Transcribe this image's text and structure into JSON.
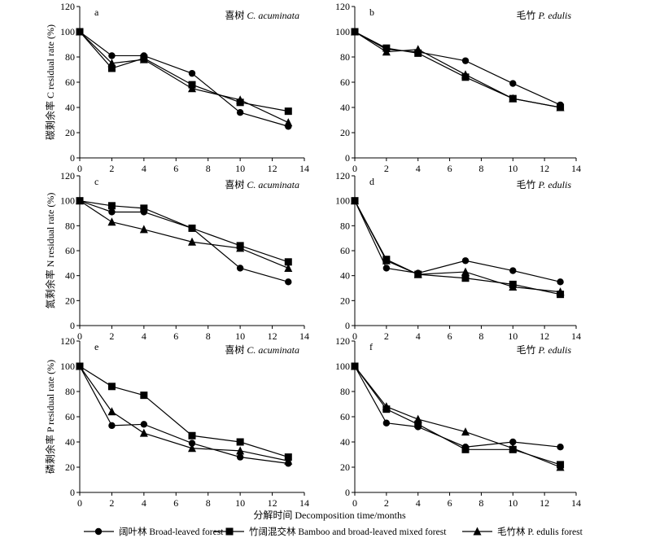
{
  "figure": {
    "xlabel": "分解时间 Decomposition time/months",
    "legend": [
      {
        "marker": "circle",
        "label": "阔叶林 Broad-leaved forest"
      },
      {
        "marker": "square",
        "label": "竹阔混交林 Bamboo and broad-leaved mixed forest"
      },
      {
        "marker": "triangle",
        "label": "毛竹林 P. edulis forest"
      }
    ]
  },
  "chart_data": [
    {
      "type": "line",
      "panel": "a",
      "species": "喜树 C. acuminata",
      "ylabel": "碳剩余率 C residual rate (%)",
      "xlim": [
        0,
        14
      ],
      "ylim": [
        0,
        120
      ],
      "xticks": [
        0,
        2,
        4,
        6,
        8,
        10,
        12,
        14
      ],
      "yticks": [
        0,
        20,
        40,
        60,
        80,
        100,
        120
      ],
      "series": [
        {
          "name": "阔叶林 Broad-leaved forest",
          "marker": "circle",
          "x": [
            0,
            2,
            4,
            7,
            10,
            13
          ],
          "y": [
            100,
            81,
            81,
            67,
            36,
            25
          ]
        },
        {
          "name": "竹阔混交林 Bamboo and broad-leaved mixed forest",
          "marker": "square",
          "x": [
            0,
            2,
            4,
            7,
            10,
            13
          ],
          "y": [
            100,
            71,
            79,
            58,
            44,
            37
          ]
        },
        {
          "name": "毛竹林 P. edulis forest",
          "marker": "triangle",
          "x": [
            0,
            2,
            4,
            7,
            10,
            13
          ],
          "y": [
            100,
            75,
            78,
            55,
            46,
            28
          ]
        }
      ]
    },
    {
      "type": "line",
      "panel": "b",
      "species": "毛竹 P. edulis",
      "ylabel": "",
      "xlim": [
        0,
        14
      ],
      "ylim": [
        0,
        120
      ],
      "xticks": [
        0,
        2,
        4,
        6,
        8,
        10,
        12,
        14
      ],
      "yticks": [
        0,
        20,
        40,
        60,
        80,
        100,
        120
      ],
      "series": [
        {
          "name": "阔叶林 Broad-leaved forest",
          "marker": "circle",
          "x": [
            0,
            2,
            4,
            7,
            10,
            13
          ],
          "y": [
            100,
            86,
            84,
            77,
            59,
            42
          ]
        },
        {
          "name": "竹阔混交林 Bamboo and broad-leaved mixed forest",
          "marker": "square",
          "x": [
            0,
            2,
            4,
            7,
            10,
            13
          ],
          "y": [
            100,
            87,
            83,
            64,
            47,
            40
          ]
        },
        {
          "name": "毛竹林 P. edulis forest",
          "marker": "triangle",
          "x": [
            0,
            2,
            4,
            7,
            10,
            13
          ],
          "y": [
            100,
            84,
            86,
            66,
            47,
            40
          ]
        }
      ]
    },
    {
      "type": "line",
      "panel": "c",
      "species": "喜树 C. acuminata",
      "ylabel": "氮剩余率 N residual rate (%)",
      "xlim": [
        0,
        14
      ],
      "ylim": [
        0,
        120
      ],
      "xticks": [
        0,
        2,
        4,
        6,
        8,
        10,
        12,
        14
      ],
      "yticks": [
        0,
        20,
        40,
        60,
        80,
        100,
        120
      ],
      "series": [
        {
          "name": "阔叶林 Broad-leaved forest",
          "marker": "circle",
          "x": [
            0,
            2,
            4,
            7,
            10,
            13
          ],
          "y": [
            100,
            91,
            91,
            78,
            46,
            35
          ]
        },
        {
          "name": "竹阔混交林 Bamboo and broad-leaved mixed forest",
          "marker": "square",
          "x": [
            0,
            2,
            4,
            7,
            10,
            13
          ],
          "y": [
            100,
            96,
            94,
            78,
            64,
            51
          ]
        },
        {
          "name": "毛竹林 P. edulis forest",
          "marker": "triangle",
          "x": [
            0,
            2,
            4,
            7,
            10,
            13
          ],
          "y": [
            100,
            83,
            77,
            67,
            62,
            46
          ]
        }
      ]
    },
    {
      "type": "line",
      "panel": "d",
      "species": "毛竹 P. edulis",
      "ylabel": "",
      "xlim": [
        0,
        14
      ],
      "ylim": [
        0,
        120
      ],
      "xticks": [
        0,
        2,
        4,
        6,
        8,
        10,
        12,
        14
      ],
      "yticks": [
        0,
        20,
        40,
        60,
        80,
        100,
        120
      ],
      "series": [
        {
          "name": "阔叶林 Broad-leaved forest",
          "marker": "circle",
          "x": [
            0,
            2,
            4,
            7,
            10,
            13
          ],
          "y": [
            100,
            46,
            42,
            52,
            44,
            35
          ]
        },
        {
          "name": "竹阔混交林 Bamboo and broad-leaved mixed forest",
          "marker": "square",
          "x": [
            0,
            2,
            4,
            7,
            10,
            13
          ],
          "y": [
            100,
            53,
            41,
            38,
            33,
            25
          ]
        },
        {
          "name": "毛竹林 P. edulis forest",
          "marker": "triangle",
          "x": [
            0,
            2,
            4,
            7,
            10,
            13
          ],
          "y": [
            100,
            52,
            41,
            43,
            31,
            27
          ]
        }
      ]
    },
    {
      "type": "line",
      "panel": "e",
      "species": "喜树 C. acuminata",
      "ylabel": "磷剩余率 P residual rate (%)",
      "xlim": [
        0,
        14
      ],
      "ylim": [
        0,
        120
      ],
      "xticks": [
        0,
        2,
        4,
        6,
        8,
        10,
        12,
        14
      ],
      "yticks": [
        0,
        20,
        40,
        60,
        80,
        100,
        120
      ],
      "series": [
        {
          "name": "阔叶林 Broad-leaved forest",
          "marker": "circle",
          "x": [
            0,
            2,
            4,
            7,
            10,
            13
          ],
          "y": [
            100,
            53,
            54,
            39,
            28,
            23
          ]
        },
        {
          "name": "竹阔混交林 Bamboo and broad-leaved mixed forest",
          "marker": "square",
          "x": [
            0,
            2,
            4,
            7,
            10,
            13
          ],
          "y": [
            100,
            84,
            77,
            45,
            40,
            28
          ]
        },
        {
          "name": "毛竹林 P. edulis forest",
          "marker": "triangle",
          "x": [
            0,
            2,
            4,
            7,
            10,
            13
          ],
          "y": [
            100,
            64,
            47,
            35,
            33,
            25
          ]
        }
      ]
    },
    {
      "type": "line",
      "panel": "f",
      "species": "毛竹 P. edulis",
      "ylabel": "",
      "xlim": [
        0,
        14
      ],
      "ylim": [
        0,
        120
      ],
      "xticks": [
        0,
        2,
        4,
        6,
        8,
        10,
        12,
        14
      ],
      "yticks": [
        0,
        20,
        40,
        60,
        80,
        100,
        120
      ],
      "series": [
        {
          "name": "阔叶林 Broad-leaved forest",
          "marker": "circle",
          "x": [
            0,
            2,
            4,
            7,
            10,
            13
          ],
          "y": [
            100,
            55,
            52,
            36,
            40,
            36
          ]
        },
        {
          "name": "竹阔混交林 Bamboo and broad-leaved mixed forest",
          "marker": "square",
          "x": [
            0,
            2,
            4,
            7,
            10,
            13
          ],
          "y": [
            100,
            66,
            54,
            34,
            34,
            22
          ]
        },
        {
          "name": "毛竹林 P. edulis forest",
          "marker": "triangle",
          "x": [
            0,
            2,
            4,
            7,
            10,
            13
          ],
          "y": [
            100,
            68,
            58,
            48,
            35,
            20
          ]
        }
      ]
    }
  ]
}
